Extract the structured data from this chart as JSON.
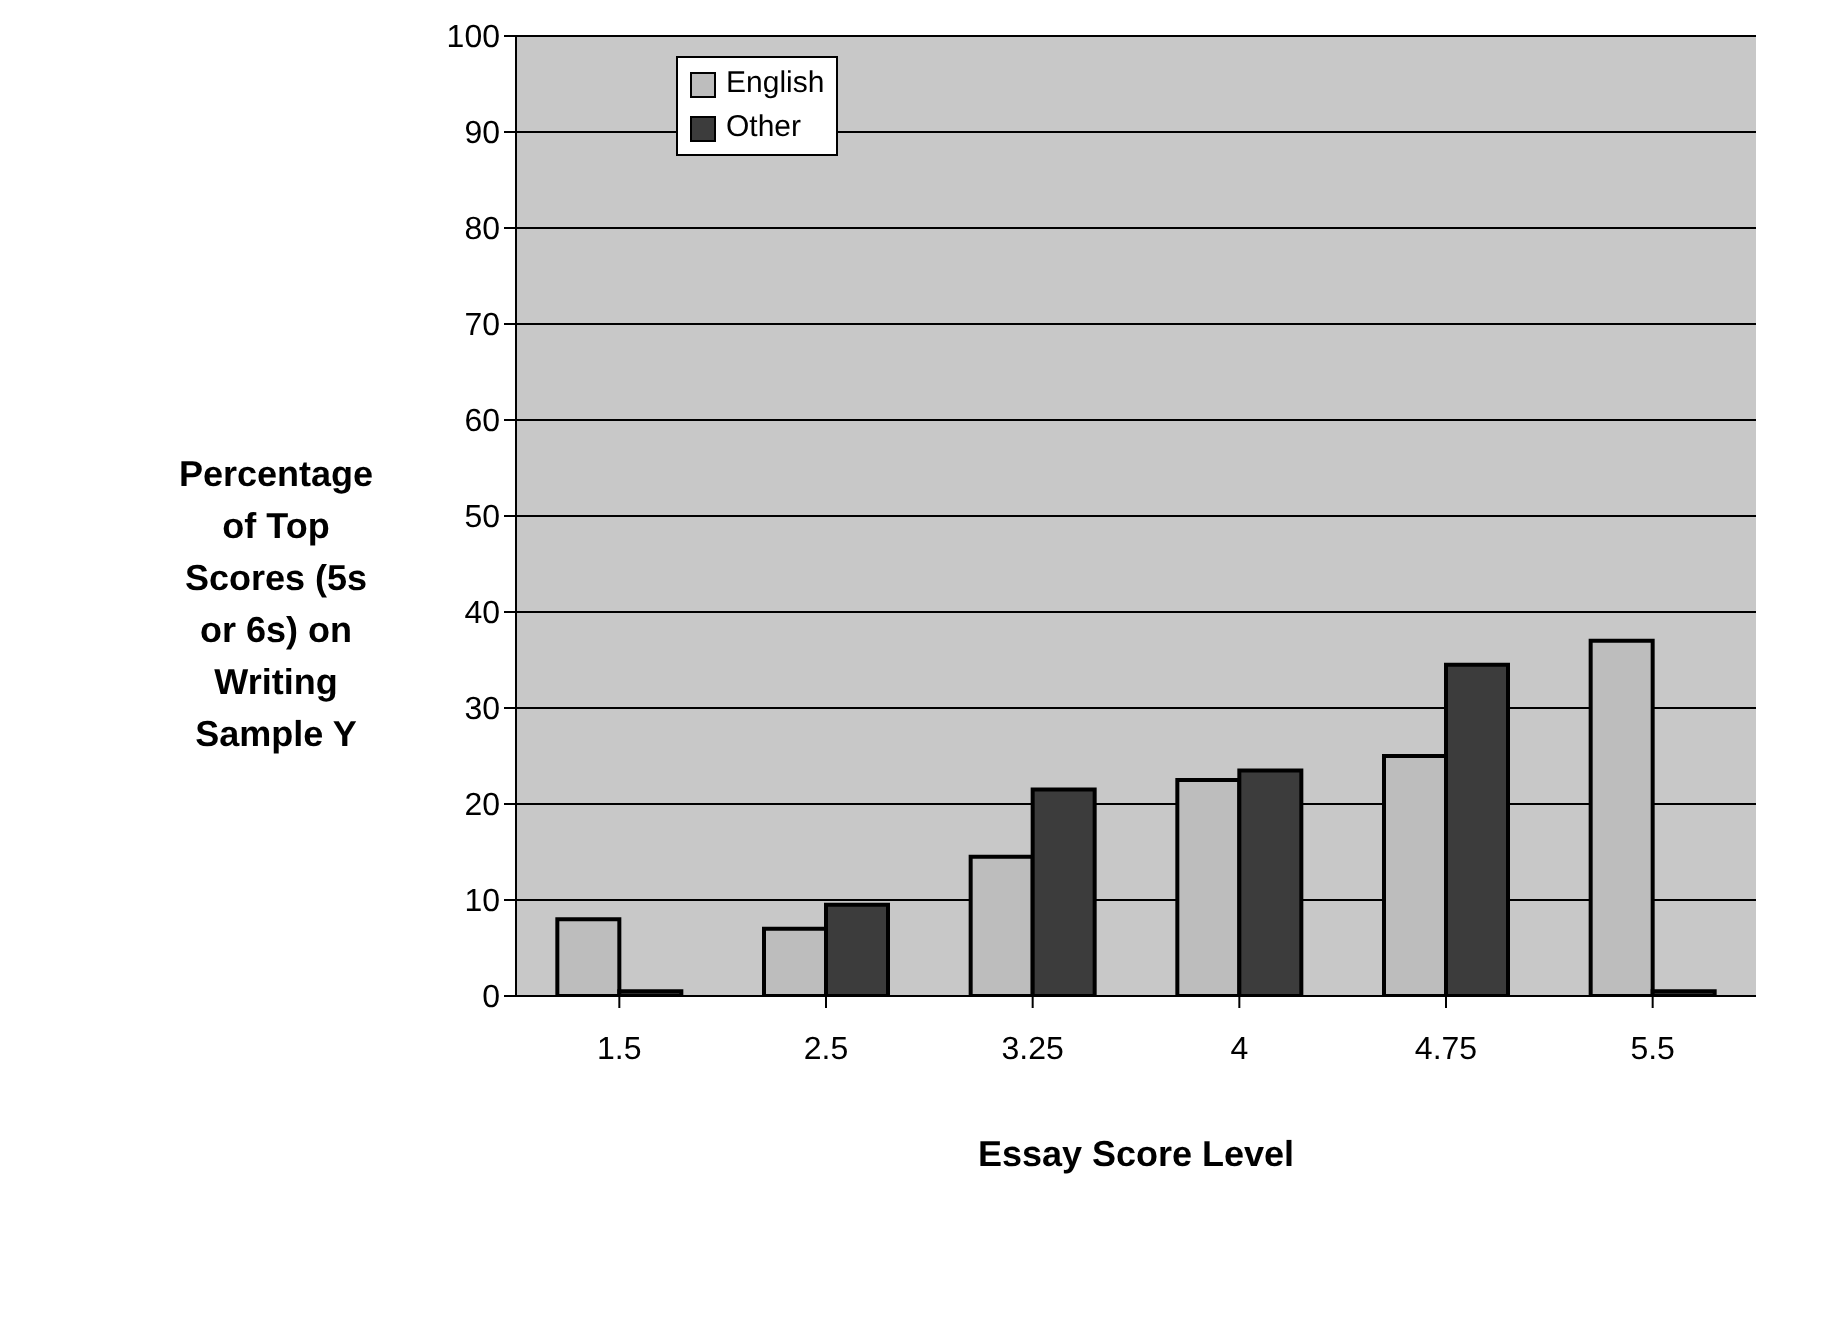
{
  "chart_data": {
    "type": "bar",
    "xlabel": "Essay Score Level",
    "ylabel": "Percentage of Top Scores (5s or 6s) on Writing Sample Y",
    "categories": [
      "1.5",
      "2.5",
      "3.25",
      "4",
      "4.75",
      "5.5"
    ],
    "series": [
      {
        "name": "English",
        "color": "#bdbdbd",
        "values": [
          8,
          7,
          14.5,
          22.5,
          25,
          37
        ]
      },
      {
        "name": "Other",
        "color": "#3c3c3c",
        "values": [
          0.5,
          9.5,
          21.5,
          23.5,
          34.5,
          0.5
        ]
      }
    ],
    "ylim": [
      0,
      100
    ],
    "yticks": [
      0,
      10,
      20,
      30,
      40,
      50,
      60,
      70,
      80,
      90,
      100
    ],
    "grid": "y",
    "legend": "top left"
  }
}
